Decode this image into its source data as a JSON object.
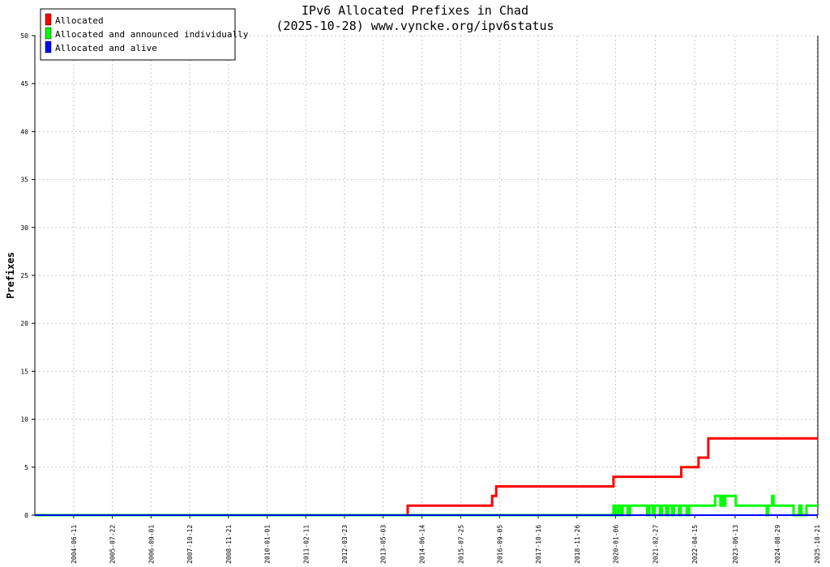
{
  "chart_data": {
    "type": "line",
    "title": "IPv6 Allocated Prefixes in Chad",
    "subtitle": "(2025-10-28) www.vyncke.org/ipv6status",
    "xlabel": "",
    "ylabel": "Prefixes",
    "ylim": [
      0,
      50
    ],
    "yticks": [
      0,
      5,
      10,
      15,
      20,
      25,
      30,
      35,
      40,
      45,
      50
    ],
    "xlim": [
      "2003-05-01",
      "2025-10-28"
    ],
    "xticks": [
      "2004-06-11",
      "2005-07-22",
      "2006-09-01",
      "2007-10-12",
      "2008-11-21",
      "2010-01-01",
      "2011-02-11",
      "2012-03-23",
      "2013-05-03",
      "2014-06-14",
      "2015-07-25",
      "2016-09-05",
      "2017-10-16",
      "2018-11-26",
      "2020-01-06",
      "2021-02-27",
      "2022-04-15",
      "2023-06-13",
      "2024-08-29",
      "2025-10-21"
    ],
    "grid": true,
    "legend_position": "top-left",
    "series": [
      {
        "name": "Allocated",
        "color": "#ff0000",
        "points": [
          [
            "2003-05-01",
            0
          ],
          [
            "2014-01-15",
            0
          ],
          [
            "2014-01-15",
            1
          ],
          [
            "2016-06-20",
            1
          ],
          [
            "2016-06-20",
            2
          ],
          [
            "2016-08-01",
            2
          ],
          [
            "2016-08-01",
            3
          ],
          [
            "2019-12-15",
            3
          ],
          [
            "2019-12-15",
            4
          ],
          [
            "2021-11-25",
            4
          ],
          [
            "2021-11-25",
            5
          ],
          [
            "2022-05-25",
            5
          ],
          [
            "2022-05-25",
            6
          ],
          [
            "2022-09-05",
            6
          ],
          [
            "2022-09-05",
            8
          ],
          [
            "2025-10-28",
            8
          ]
        ]
      },
      {
        "name": "Allocated and announced individually",
        "color": "#00ff00",
        "points": [
          [
            "2003-05-01",
            0
          ],
          [
            "2019-12-15",
            0
          ],
          [
            "2019-12-15",
            1
          ],
          [
            "2020-01-05",
            1
          ],
          [
            "2020-01-05",
            0
          ],
          [
            "2020-02-01",
            0
          ],
          [
            "2020-02-01",
            1
          ],
          [
            "2020-03-01",
            1
          ],
          [
            "2020-03-01",
            0
          ],
          [
            "2020-03-20",
            0
          ],
          [
            "2020-03-20",
            1
          ],
          [
            "2020-05-10",
            1
          ],
          [
            "2020-05-10",
            0
          ],
          [
            "2020-06-05",
            0
          ],
          [
            "2020-06-05",
            1
          ],
          [
            "2020-12-01",
            1
          ],
          [
            "2020-12-01",
            0
          ],
          [
            "2020-12-25",
            0
          ],
          [
            "2020-12-25",
            1
          ],
          [
            "2021-02-01",
            1
          ],
          [
            "2021-02-01",
            0
          ],
          [
            "2021-02-20",
            0
          ],
          [
            "2021-02-20",
            1
          ],
          [
            "2021-04-15",
            1
          ],
          [
            "2021-04-15",
            0
          ],
          [
            "2021-05-05",
            0
          ],
          [
            "2021-05-05",
            1
          ],
          [
            "2021-06-20",
            1
          ],
          [
            "2021-06-20",
            0
          ],
          [
            "2021-07-10",
            0
          ],
          [
            "2021-07-10",
            1
          ],
          [
            "2021-08-20",
            1
          ],
          [
            "2021-08-20",
            0
          ],
          [
            "2021-09-10",
            0
          ],
          [
            "2021-09-10",
            1
          ],
          [
            "2021-11-01",
            1
          ],
          [
            "2021-11-01",
            0
          ],
          [
            "2021-11-20",
            0
          ],
          [
            "2021-11-20",
            1
          ],
          [
            "2022-01-20",
            1
          ],
          [
            "2022-01-20",
            0
          ],
          [
            "2022-02-15",
            0
          ],
          [
            "2022-02-15",
            1
          ],
          [
            "2022-11-15",
            1
          ],
          [
            "2022-11-15",
            2
          ],
          [
            "2023-01-10",
            2
          ],
          [
            "2023-01-10",
            1
          ],
          [
            "2023-02-01",
            1
          ],
          [
            "2023-02-01",
            2
          ],
          [
            "2023-02-20",
            2
          ],
          [
            "2023-02-20",
            1
          ],
          [
            "2023-03-01",
            1
          ],
          [
            "2023-03-01",
            2
          ],
          [
            "2023-06-20",
            2
          ],
          [
            "2023-06-20",
            1
          ],
          [
            "2024-05-10",
            1
          ],
          [
            "2024-05-10",
            0
          ],
          [
            "2024-05-25",
            0
          ],
          [
            "2024-05-25",
            1
          ],
          [
            "2024-07-05",
            1
          ],
          [
            "2024-07-05",
            2
          ],
          [
            "2024-07-20",
            2
          ],
          [
            "2024-07-20",
            1
          ],
          [
            "2025-02-15",
            1
          ],
          [
            "2025-02-15",
            0
          ],
          [
            "2025-04-15",
            0
          ],
          [
            "2025-04-15",
            1
          ],
          [
            "2025-05-10",
            1
          ],
          [
            "2025-05-10",
            0
          ],
          [
            "2025-07-01",
            0
          ],
          [
            "2025-07-01",
            1
          ],
          [
            "2025-10-28",
            1
          ]
        ]
      },
      {
        "name": "Allocated and alive",
        "color": "#0000ff",
        "points": [
          [
            "2003-05-01",
            0
          ],
          [
            "2025-10-28",
            0
          ]
        ]
      }
    ]
  }
}
